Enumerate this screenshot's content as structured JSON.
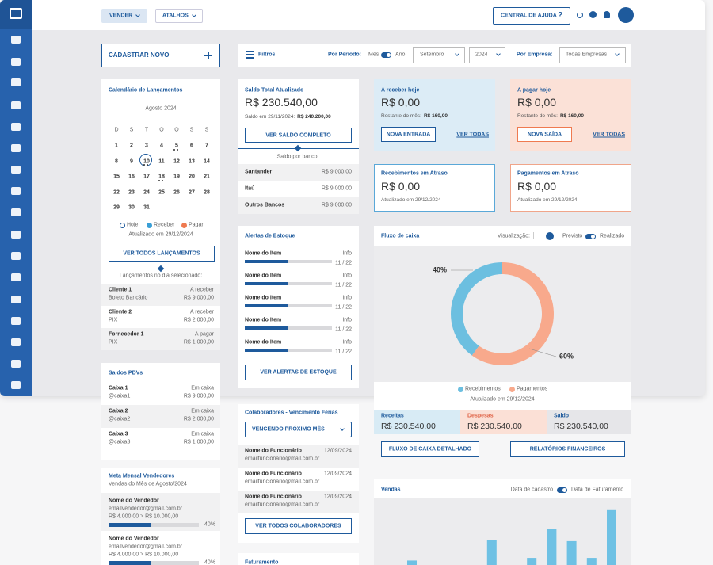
{
  "topbar": {
    "vender": "VENDER",
    "atalhos": "ATALHOS",
    "ajuda": "CENTRAL DE AJUDA",
    "ajuda_q": "?"
  },
  "cadastrar": "CADASTRAR NOVO",
  "filtros": {
    "label": "Filtros",
    "periodo": "Por Período:",
    "mes": "Mês",
    "ano": "Ano",
    "mes_sel": "Setembro",
    "ano_sel": "2024",
    "empresa": "Por Empresa:",
    "empresa_sel": "Todas Empresas"
  },
  "calendario": {
    "title": "Calendário de Lançamentos",
    "month": "Agosto 2024",
    "weekdays": [
      "D",
      "S",
      "T",
      "Q",
      "Q",
      "S",
      "S"
    ],
    "weeks": [
      [
        1,
        2,
        3,
        4,
        5,
        6,
        7
      ],
      [
        8,
        9,
        10,
        11,
        12,
        13,
        14
      ],
      [
        15,
        16,
        17,
        18,
        19,
        20,
        21
      ],
      [
        22,
        23,
        24,
        25,
        26,
        27,
        28
      ],
      [
        29,
        30,
        31
      ]
    ],
    "legend": [
      "Hoje",
      "Receber",
      "Pagar"
    ],
    "updated": "Atualizado em 29/12/2024",
    "button": "VER TODOS LANÇAMENTOS",
    "selected": "Lançamentos no dia selecionado:",
    "items": [
      {
        "name": "Cliente 1",
        "status": "A receber",
        "method": "Boleto Bancário",
        "amount": "R$ 9.000,00"
      },
      {
        "name": "Cliente 2",
        "status": "A receber",
        "method": "PIX",
        "amount": "R$ 2.000,00"
      },
      {
        "name": "Fornecedor 1",
        "status": "A pagar",
        "method": "PIX",
        "amount": "R$ 1.000,00"
      }
    ]
  },
  "saldo": {
    "title": "Saldo Total Atualizado",
    "value": "R$ 230.540,00",
    "note": "Saldo em 29/11/2024:",
    "note_value": "R$ 240.200,00",
    "button": "VER SALDO COMPLETO",
    "por_banco": "Saldo por banco:",
    "banks": [
      [
        "Santander",
        "R$ 9.000,00"
      ],
      [
        "Itaú",
        "R$ 9.000,00"
      ],
      [
        "Outros Bancos",
        "R$ 9.000,00"
      ]
    ]
  },
  "estoque": {
    "title": "Alertas de Estoque",
    "items": [
      {
        "name": "Nome do Item",
        "info": "Info",
        "qty": "11 / 22"
      },
      {
        "name": "Nome do Item",
        "info": "Info",
        "qty": "11 / 22"
      },
      {
        "name": "Nome do Item",
        "info": "Info",
        "qty": "11 / 22"
      },
      {
        "name": "Nome do Item",
        "info": "Info",
        "qty": "11 / 22"
      },
      {
        "name": "Nome do Item",
        "info": "Info",
        "qty": "11 / 22"
      }
    ],
    "button": "VER ALERTAS DE ESTOQUE"
  },
  "receber": {
    "title": "A receber hoje",
    "value": "R$ 0,00",
    "note": "Restante do mês:",
    "note_value": "R$ 160,00",
    "button": "NOVA ENTRADA",
    "link": "VER TODAS"
  },
  "pagar": {
    "title": "A pagar hoje",
    "value": "R$ 0,00",
    "note": "Restante do mês:",
    "note_value": "R$ 160,00",
    "button": "NOVA SAÍDA",
    "link": "VER TODAS"
  },
  "rec_atraso": {
    "title": "Recebimentos em Atraso",
    "value": "R$ 0,00",
    "note": "Atualizado em 29/12/2024"
  },
  "pag_atraso": {
    "title": "Pagamentos em Atraso",
    "value": "R$ 0,00",
    "note": "Atualizado em 29/12/2024"
  },
  "fluxo": {
    "title": "Fluxo de caixa",
    "visualizacao": "Visualização:",
    "previsto": "Previsto",
    "realizado": "Realizado",
    "chart": {
      "type": "donut",
      "categories": [
        "Recebimentos",
        "Pagamentos"
      ],
      "values": [
        40,
        60
      ],
      "value_labels": [
        "40%",
        "60%"
      ],
      "colors": [
        "#6cbfe0",
        "#f8a98c"
      ]
    },
    "updated": "Atualizado em 29/12/2024",
    "totals": [
      {
        "label": "Receitas",
        "value": "R$ 230.540,00"
      },
      {
        "label": "Despesas",
        "value": "R$ 230.540,00"
      },
      {
        "label": "Saldo",
        "value": "R$ 230.540,00"
      }
    ],
    "buttons": [
      "FLUXO DE CAIXA DETALHADO",
      "RELATÓRIOS FINANCEIROS"
    ]
  },
  "pdvs": {
    "title": "Saldos PDVs",
    "items": [
      {
        "name": "Caixa 1",
        "status": "Em caixa",
        "user": "@caixa1",
        "amount": "R$ 9.000,00"
      },
      {
        "name": "Caixa 2",
        "status": "Em caixa",
        "user": "@caixa2",
        "amount": "R$ 2.000,00"
      },
      {
        "name": "Caixa 3",
        "status": "Em caixa",
        "user": "@caixa3",
        "amount": "R$ 1.000,00"
      }
    ]
  },
  "meta": {
    "title": "Meta Mensal Vendedores",
    "subtitle": "Vendas do Mês de Agosto/2024",
    "items": [
      {
        "name": "Nome do Vendedor",
        "email": "emailvendedor@gmail.com.br",
        "range": "R$ 4.000,00 > R$ 10.000,00",
        "pct": "40%"
      },
      {
        "name": "Nome do Vendedor",
        "email": "emailvendedor@gmail.com.br",
        "range": "R$ 4.000,00 > R$ 10.000,00",
        "pct": "40%"
      }
    ]
  },
  "colab": {
    "title": "Colaboradores - Vencimento Férias",
    "select": "VENCENDO PRÓXIMO MÊS",
    "items": [
      {
        "name": "Nome do Funcionário",
        "email": "emailfuncionario@mail.com.br",
        "date": "12/09/2024"
      },
      {
        "name": "Nome do Funcionário",
        "email": "emailfuncionario@mail.com.br",
        "date": "12/09/2024"
      },
      {
        "name": "Nome do Funcionário",
        "email": "emailfuncionario@mail.com.br",
        "date": "12/09/2024"
      }
    ],
    "button": "VER TODOS COLABORADORES"
  },
  "faturamento": "Faturamento",
  "vendas": {
    "title": "Vendas",
    "cadastro": "Data de cadastro",
    "faturamento": "Data de Faturamento",
    "chart": {
      "type": "bar",
      "categories": [
        null,
        null,
        null,
        null,
        null,
        null,
        null,
        null,
        null,
        null,
        null
      ],
      "values": [
        5,
        0,
        0,
        0,
        28,
        0,
        8,
        41,
        27,
        8,
        63
      ],
      "color": "#6ec1e4",
      "ylim": [
        0,
        70
      ]
    }
  }
}
